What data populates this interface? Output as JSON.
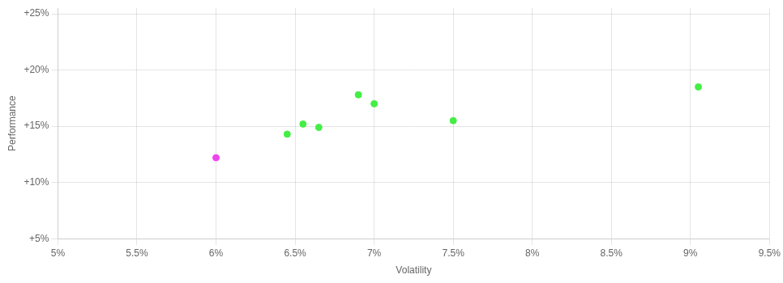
{
  "chart_data": {
    "type": "scatter",
    "xlabel": "Volatility",
    "ylabel": "Performance",
    "xlim": [
      0.05,
      0.095
    ],
    "ylim": [
      0.05,
      0.255
    ],
    "xticks": [
      {
        "value": 0.05,
        "label": "5%"
      },
      {
        "value": 0.055,
        "label": "5.5%"
      },
      {
        "value": 0.06,
        "label": "6%"
      },
      {
        "value": 0.065,
        "label": "6.5%"
      },
      {
        "value": 0.07,
        "label": "7%"
      },
      {
        "value": 0.075,
        "label": "7.5%"
      },
      {
        "value": 0.08,
        "label": "8%"
      },
      {
        "value": 0.085,
        "label": "8.5%"
      },
      {
        "value": 0.09,
        "label": "9%"
      },
      {
        "value": 0.095,
        "label": "9.5%"
      }
    ],
    "yticks": [
      {
        "value": 0.05,
        "label": "+5%"
      },
      {
        "value": 0.1,
        "label": "+10%"
      },
      {
        "value": 0.15,
        "label": "+15%"
      },
      {
        "value": 0.2,
        "label": "+20%"
      },
      {
        "value": 0.25,
        "label": "+25%"
      }
    ],
    "grid": true,
    "series": [
      {
        "color": "#44ee44",
        "marker": "circle",
        "x": [
          0.0645,
          0.0655,
          0.0665,
          0.069,
          0.07,
          0.075,
          0.0905
        ],
        "values": [
          0.143,
          0.152,
          0.149,
          0.178,
          0.17,
          0.155,
          0.185
        ]
      },
      {
        "color": "#ee44ee",
        "marker": "circle",
        "x": [
          0.06
        ],
        "values": [
          0.122
        ]
      }
    ]
  }
}
